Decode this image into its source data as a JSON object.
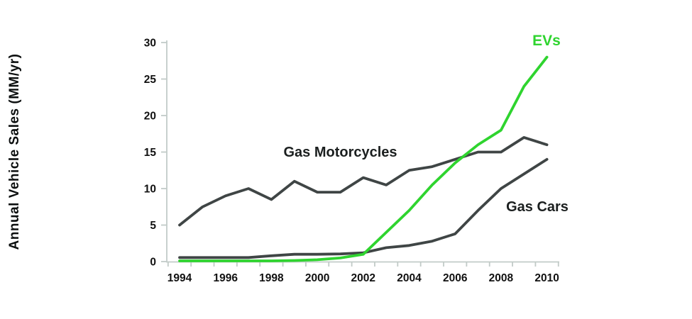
{
  "chart_data": {
    "type": "line",
    "title": "",
    "ylabel": "Annual Vehicle Sales (MM/yr)",
    "xlabel": "",
    "x": [
      1994,
      1995,
      1996,
      1997,
      1998,
      1999,
      2000,
      2001,
      2002,
      2003,
      2004,
      2005,
      2006,
      2007,
      2008,
      2009,
      2010
    ],
    "xtick_labels": [
      "1994",
      "1996",
      "1998",
      "2000",
      "2002",
      "2004",
      "2006",
      "2008",
      "2010"
    ],
    "ylim": [
      0,
      30
    ],
    "ytick_step": 5,
    "ytick_labels": [
      "0",
      "5",
      "10",
      "15",
      "20",
      "25",
      "30"
    ],
    "grid": false,
    "legend_position": "inline-labels",
    "series": [
      {
        "name": "Gas Motorcycles",
        "color": "#3f4545",
        "values": [
          5,
          7.5,
          9,
          10,
          8.5,
          11,
          9.5,
          9.5,
          11.5,
          10.5,
          12.5,
          13,
          14,
          15,
          15,
          17,
          16
        ]
      },
      {
        "name": "EVs",
        "color": "#2fd42f",
        "values": [
          0.1,
          0.1,
          0.1,
          0.1,
          0.1,
          0.15,
          0.25,
          0.5,
          1,
          4,
          7,
          10.5,
          13.5,
          16,
          18,
          24,
          28
        ]
      },
      {
        "name": "Gas Cars",
        "color": "#3f4545",
        "values": [
          0.55,
          0.55,
          0.55,
          0.55,
          0.8,
          1,
          1,
          1.05,
          1.2,
          1.9,
          2.2,
          2.8,
          3.8,
          7,
          10,
          12,
          14
        ]
      }
    ],
    "colors": {
      "axis": "#c2cbc8",
      "tick_text": "#111111",
      "label_text_dark": "#1b1f1f",
      "ev_green": "#2fd42f",
      "dark_series": "#3f4545",
      "background": "#ffffff"
    }
  }
}
